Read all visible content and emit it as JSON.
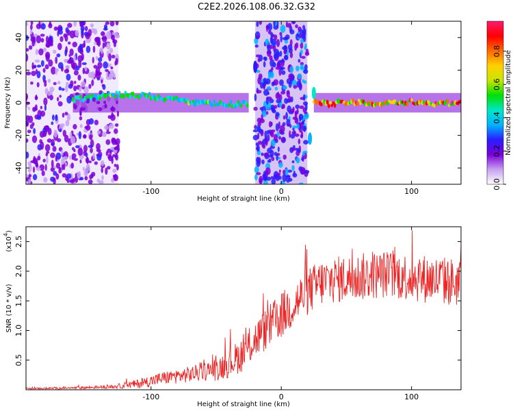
{
  "title": "C2E2.2026.108.06.32.G32",
  "chart_data": [
    {
      "type": "heatmap",
      "panel": "top",
      "title": "C2E2.2026.108.06.32.G32",
      "xlabel": "Height of straight line (km)",
      "ylabel": "Frequency (Hz)",
      "xlim": [
        -196,
        138
      ],
      "ylim": [
        -50,
        50
      ],
      "xticks": [
        -100,
        0,
        100
      ],
      "xtick_labels": [
        "-100",
        "0",
        "100"
      ],
      "yticks": [
        -40,
        -20,
        0,
        20,
        40
      ],
      "ytick_labels": [
        "-40",
        "-20",
        "0",
        "20",
        "40"
      ],
      "colorbar": {
        "label": "Normalized spectral amplitude",
        "range": [
          0,
          0.98
        ],
        "ticks": [
          0.0,
          0.2,
          0.4,
          0.6,
          0.8
        ],
        "tick_labels": [
          "0.0",
          "0.2",
          "0.4",
          "0.6",
          "0.8"
        ],
        "colors": [
          "#ffffff",
          "#c8a0f0",
          "#7b00d8",
          "#2a1cff",
          "#00b4ff",
          "#00e6c8",
          "#00e000",
          "#c8e600",
          "#ffd000",
          "#ff6a00",
          "#ff0000",
          "#ff1a6e"
        ]
      },
      "features": {
        "noise_zones": [
          [
            -196,
            -125
          ],
          [
            -20,
            20
          ]
        ],
        "main_band_segments": [
          [
            -160,
            -25,
            0.5
          ],
          [
            25,
            138,
            0.85
          ]
        ]
      }
    },
    {
      "type": "line",
      "panel": "bottom",
      "xlabel": "Height of straight line (km)",
      "ylabel": "SNR (10 * v/v)",
      "yscale_note": "(x10",
      "yscale_exp": "4",
      "xlim": [
        -196,
        138
      ],
      "ylim": [
        0,
        2.75
      ],
      "xticks": [
        -100,
        0,
        100
      ],
      "xtick_labels": [
        "-100",
        "0",
        "100"
      ],
      "yticks": [
        0.5,
        1.0,
        1.5,
        2.0,
        2.5
      ],
      "ytick_labels": [
        "0.5",
        "1.0",
        "1.5",
        "2.0",
        "2.5"
      ],
      "series": [
        {
          "name": "SNR",
          "color": "#ee2222",
          "trend": {
            "x": [
              -196,
              -160,
              -130,
              -110,
              -90,
              -70,
              -50,
              -40,
              -30,
              -20,
              -10,
              0,
              10,
              20,
              30,
              40,
              60,
              80,
              100,
              120,
              138
            ],
            "y": [
              0.02,
              0.03,
              0.05,
              0.1,
              0.2,
              0.26,
              0.35,
              0.45,
              0.6,
              0.85,
              1.05,
              1.25,
              1.45,
              1.65,
              1.8,
              1.85,
              1.9,
              1.95,
              1.9,
              1.85,
              1.8
            ]
          },
          "amplitude": {
            "x": [
              -196,
              -130,
              -100,
              -60,
              -30,
              0,
              40,
              138
            ],
            "y": [
              0.01,
              0.03,
              0.1,
              0.15,
              0.3,
              0.4,
              0.4,
              0.42
            ]
          }
        }
      ]
    }
  ]
}
